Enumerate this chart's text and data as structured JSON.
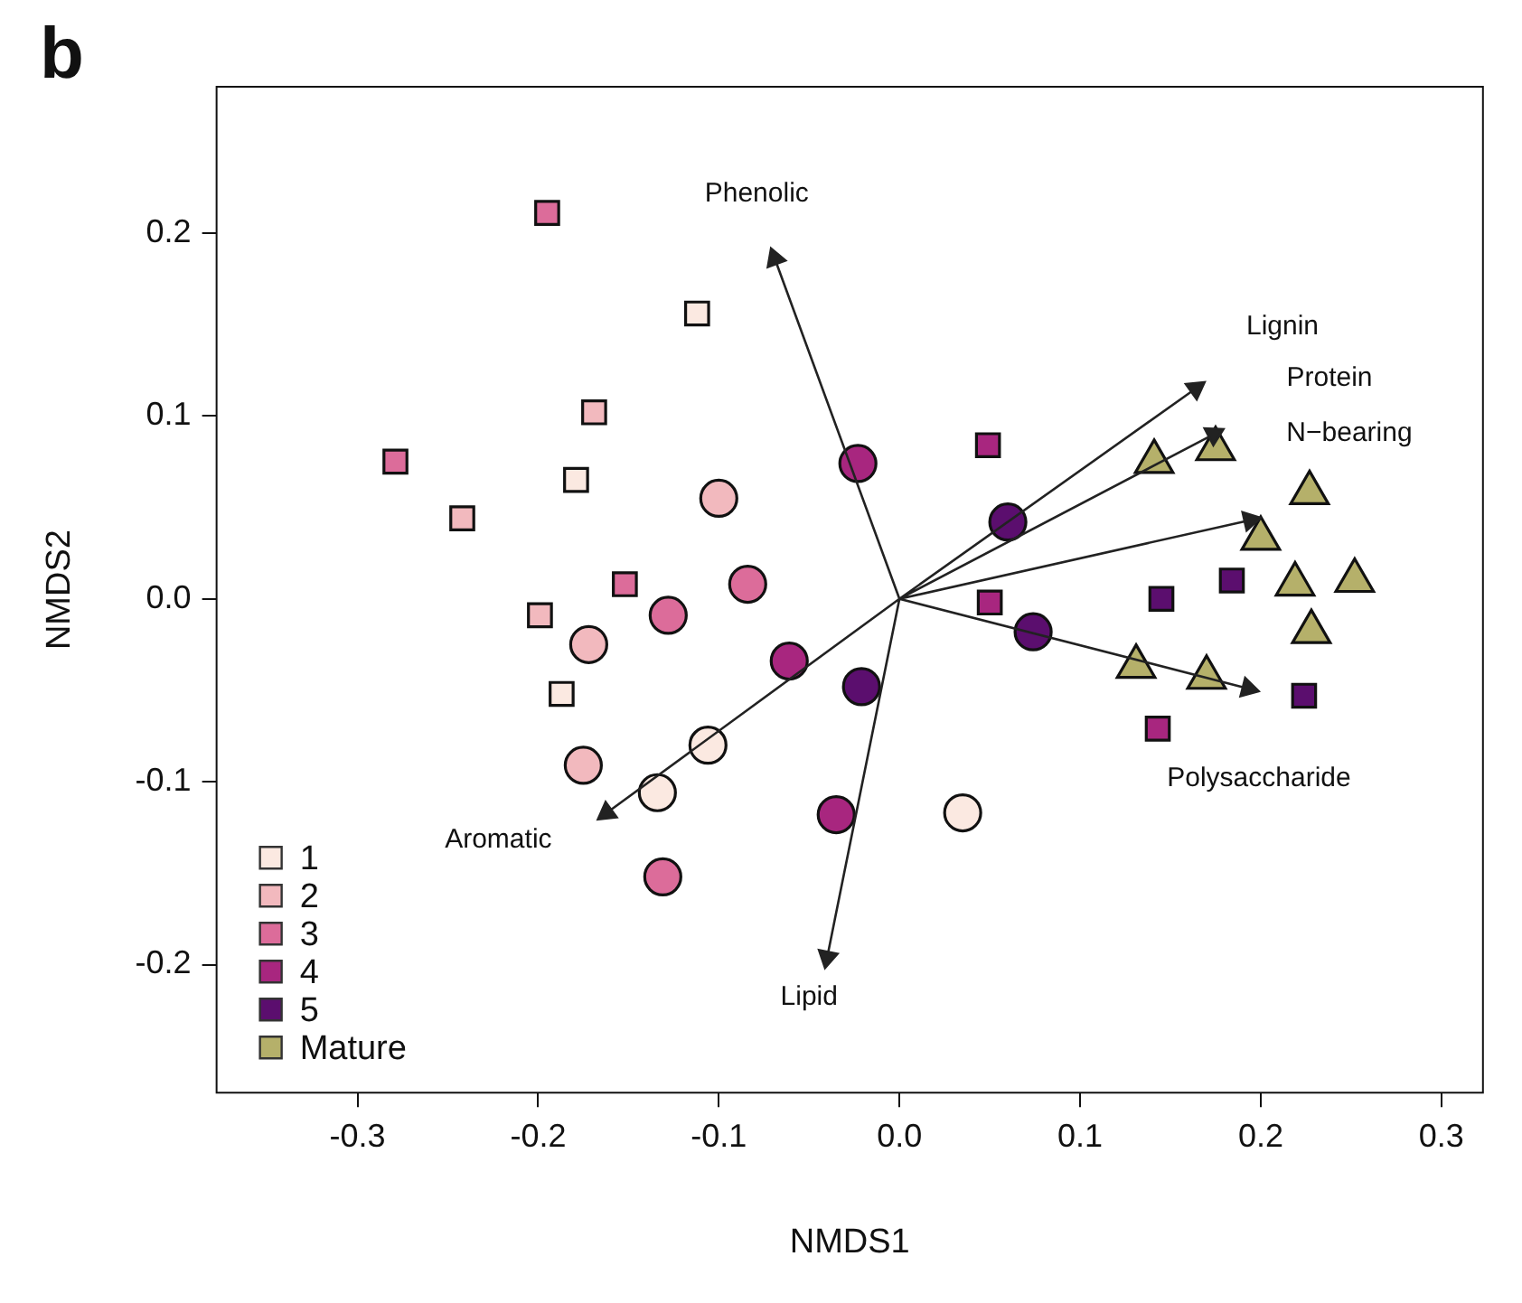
{
  "chart_data": {
    "type": "scatter",
    "xlabel": "NMDS1",
    "ylabel": "NMDS2",
    "xlim": [
      -0.378,
      0.323
    ],
    "ylim": [
      -0.27,
      0.28
    ],
    "xticks": [
      -0.3,
      -0.2,
      -0.1,
      {
        "value": 0,
        "label": "0.0"
      },
      0.1,
      0.2,
      0.3
    ],
    "yticks": [
      -0.2,
      -0.1,
      {
        "value": 0,
        "label": "0.0"
      },
      0.1,
      0.2
    ],
    "grid": false,
    "legend": "bottom left",
    "annotations": [
      "b",
      "Phenolic",
      "Lignin",
      "Protein",
      "N−bearing",
      "Polysaccharide",
      "Aromatic",
      "Lipid"
    ],
    "series": [
      {
        "name": "1",
        "color": "#fbe9e1",
        "marker": "square",
        "x": [
          -0.112,
          -0.179,
          -0.187
        ],
        "values": [
          0.156,
          0.065,
          -0.052
        ]
      },
      {
        "name": "2",
        "color": "#f2b9be",
        "marker": "square",
        "x": [
          -0.169,
          -0.242,
          -0.199
        ],
        "values": [
          0.102,
          0.044,
          -0.009
        ]
      },
      {
        "name": "3",
        "color": "#dc6c9a",
        "marker": "square",
        "x": [
          -0.195,
          -0.279,
          -0.152
        ],
        "values": [
          0.211,
          0.075,
          0.008
        ]
      },
      {
        "name": "4",
        "color": "#a8267f",
        "marker": "square",
        "x": [
          0.049,
          0.05,
          0.143
        ],
        "values": [
          0.084,
          -0.002,
          -0.071
        ]
      },
      {
        "name": "5",
        "color": "#5b0e6e",
        "marker": "square",
        "x": [
          0.145,
          0.184,
          0.224
        ],
        "values": [
          0.0,
          0.01,
          -0.053
        ]
      },
      {
        "name": "Mature",
        "color": "#b5b06a",
        "marker": "triangle",
        "x": [
          0.175,
          0.141,
          0.227,
          0.2,
          0.219,
          0.252,
          0.228,
          0.131,
          0.17
        ],
        "values": [
          0.082,
          0.075,
          0.058,
          0.033,
          0.008,
          0.01,
          -0.018,
          -0.037,
          -0.043
        ]
      },
      {
        "color": "#fbe9e1",
        "marker": "circle",
        "x": [
          -0.106,
          -0.134,
          0.035
        ],
        "values": [
          -0.08,
          -0.106,
          -0.117
        ]
      },
      {
        "color": "#f2b9be",
        "marker": "circle",
        "x": [
          -0.1,
          -0.172,
          -0.175
        ],
        "values": [
          0.055,
          -0.025,
          -0.091
        ]
      },
      {
        "color": "#dc6c9a",
        "marker": "circle",
        "x": [
          -0.128,
          -0.084,
          -0.131
        ],
        "values": [
          -0.009,
          0.008,
          -0.152
        ]
      },
      {
        "color": "#a8267f",
        "marker": "circle",
        "x": [
          -0.023,
          -0.061,
          -0.035
        ],
        "values": [
          0.074,
          -0.034,
          -0.118
        ]
      },
      {
        "color": "#5b0e6e",
        "marker": "circle",
        "x": [
          -0.021,
          0.06,
          0.074
        ],
        "values": [
          -0.048,
          0.042,
          -0.018
        ]
      },
      {
        "type": "line",
        "color": "#222222",
        "marker": "triangle",
        "x": [
          0,
          -0.069,
          null,
          0,
          0.164,
          null,
          0,
          0.174,
          null,
          0,
          0.194,
          null,
          0,
          0.193,
          null,
          0,
          -0.162,
          null,
          0,
          -0.04
        ],
        "values": [
          0,
          0.186,
          null,
          0,
          0.115,
          null,
          0,
          0.09,
          null,
          0,
          0.043,
          null,
          0,
          -0.049,
          null,
          0,
          -0.117,
          null,
          0,
          -0.196
        ]
      }
    ]
  }
}
